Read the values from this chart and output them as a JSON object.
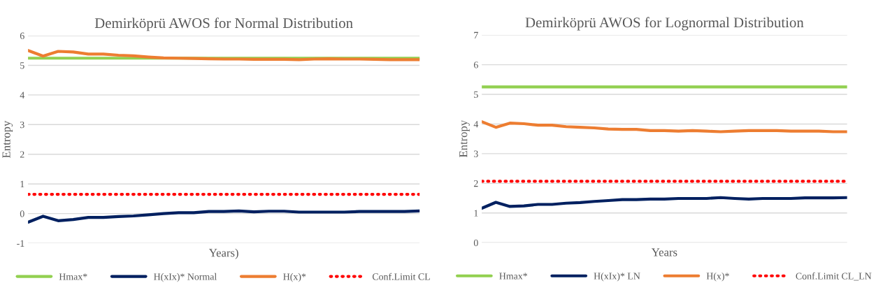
{
  "chart_data": [
    {
      "type": "line",
      "title": "Demirköprü AWOS for Normal Distribution",
      "xlabel": "Years)",
      "ylabel": "Entropy",
      "categories": [
        null,
        null,
        null,
        null,
        null,
        null,
        null,
        null,
        null,
        null,
        null,
        null,
        null,
        null,
        null,
        null,
        null,
        null,
        null,
        null,
        null,
        null,
        null,
        null,
        null,
        null,
        null
      ],
      "ylim": [
        -1,
        6
      ],
      "yticks": [
        -1,
        0,
        1,
        2,
        3,
        4,
        5,
        6
      ],
      "grid": "y",
      "legend": "bottom",
      "marker": "none",
      "series": [
        {
          "name": "Hmax*",
          "color": "#92d050",
          "line_style": "solid",
          "values": [
            5.24,
            5.24,
            5.24,
            5.24,
            5.24,
            5.24,
            5.24,
            5.24,
            5.24,
            5.24,
            5.24,
            5.24,
            5.24,
            5.24,
            5.24,
            5.24,
            5.24,
            5.24,
            5.24,
            5.24,
            5.24,
            5.24,
            5.24,
            5.24,
            5.24,
            5.24,
            5.24
          ]
        },
        {
          "name": "H(xIx)* Normal",
          "color": "#002060",
          "line_style": "solid",
          "values": [
            -0.29,
            -0.09,
            -0.24,
            -0.2,
            -0.13,
            -0.13,
            -0.1,
            -0.08,
            -0.04,
            0.0,
            0.03,
            0.03,
            0.07,
            0.07,
            0.09,
            0.06,
            0.08,
            0.08,
            0.05,
            0.05,
            0.05,
            0.05,
            0.07,
            0.07,
            0.07,
            0.07,
            0.09
          ]
        },
        {
          "name": "H(x)*",
          "color": "#ed7d31",
          "line_style": "solid",
          "values": [
            5.5,
            5.31,
            5.47,
            5.45,
            5.38,
            5.38,
            5.34,
            5.32,
            5.28,
            5.25,
            5.24,
            5.23,
            5.22,
            5.21,
            5.21,
            5.2,
            5.2,
            5.2,
            5.19,
            5.21,
            5.22,
            5.21,
            5.21,
            5.2,
            5.19,
            5.19,
            5.19
          ]
        },
        {
          "name": "Conf.Limit CL",
          "color": "#ff0000",
          "line_style": "dotted",
          "values": [
            0.65,
            0.65,
            0.65,
            0.65,
            0.65,
            0.65,
            0.65,
            0.65,
            0.65,
            0.65,
            0.65,
            0.65,
            0.65,
            0.65,
            0.65,
            0.65,
            0.65,
            0.65,
            0.65,
            0.65,
            0.65,
            0.65,
            0.65,
            0.65,
            0.65,
            0.65,
            0.65
          ]
        }
      ]
    },
    {
      "type": "line",
      "title": "Demirköprü AWOS for Lognormal Distribution",
      "xlabel": "Years",
      "ylabel": "Entropy",
      "categories": [
        null,
        null,
        null,
        null,
        null,
        null,
        null,
        null,
        null,
        null,
        null,
        null,
        null,
        null,
        null,
        null,
        null,
        null,
        null,
        null,
        null,
        null,
        null,
        null,
        null,
        null,
        null
      ],
      "ylim": [
        0,
        7
      ],
      "yticks": [
        0,
        1,
        2,
        3,
        4,
        5,
        6,
        7
      ],
      "grid": "y",
      "legend": "bottom",
      "marker": "none",
      "series": [
        {
          "name": "Hmax*",
          "color": "#92d050",
          "line_style": "solid",
          "values": [
            5.25,
            5.25,
            5.25,
            5.25,
            5.25,
            5.25,
            5.25,
            5.25,
            5.25,
            5.25,
            5.25,
            5.25,
            5.25,
            5.25,
            5.25,
            5.25,
            5.25,
            5.25,
            5.25,
            5.25,
            5.25,
            5.25,
            5.25,
            5.25,
            5.25,
            5.25,
            5.25
          ]
        },
        {
          "name": "H(xIx)* LN",
          "color": "#002060",
          "line_style": "solid",
          "values": [
            1.16,
            1.36,
            1.22,
            1.24,
            1.29,
            1.29,
            1.33,
            1.35,
            1.39,
            1.42,
            1.45,
            1.45,
            1.47,
            1.47,
            1.49,
            1.49,
            1.49,
            1.52,
            1.49,
            1.47,
            1.49,
            1.49,
            1.49,
            1.51,
            1.51,
            1.51,
            1.52
          ]
        },
        {
          "name": "H(x)*",
          "color": "#ed7d31",
          "line_style": "solid",
          "values": [
            4.08,
            3.89,
            4.03,
            4.01,
            3.96,
            3.96,
            3.91,
            3.89,
            3.87,
            3.83,
            3.82,
            3.82,
            3.78,
            3.78,
            3.76,
            3.78,
            3.76,
            3.74,
            3.76,
            3.78,
            3.78,
            3.78,
            3.76,
            3.76,
            3.76,
            3.74,
            3.74
          ]
        },
        {
          "name": "Conf.Limit CL_LN",
          "color": "#ff0000",
          "line_style": "dotted",
          "values": [
            2.07,
            2.07,
            2.07,
            2.07,
            2.07,
            2.07,
            2.07,
            2.07,
            2.07,
            2.07,
            2.07,
            2.07,
            2.07,
            2.07,
            2.07,
            2.07,
            2.07,
            2.07,
            2.07,
            2.07,
            2.07,
            2.07,
            2.07,
            2.07,
            2.07,
            2.07,
            2.07
          ]
        }
      ]
    }
  ]
}
